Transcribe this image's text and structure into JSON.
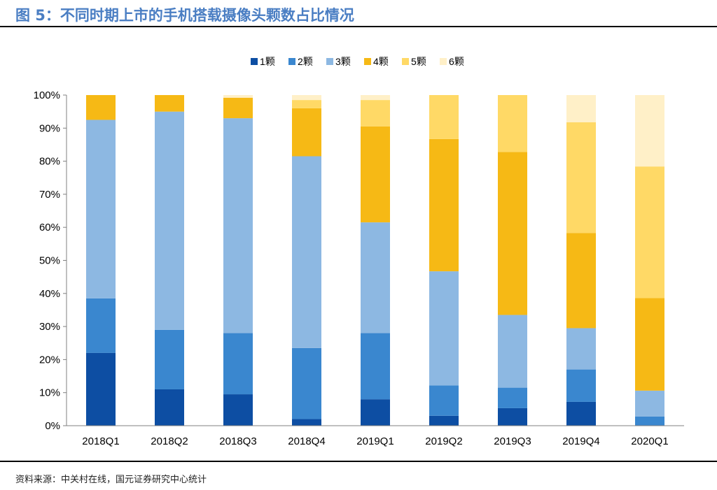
{
  "title": "图 5：不同时期上市的手机搭载摄像头颗数占比情况",
  "source": "资料来源：中关村在线，国元证券研究中心统计",
  "chart_data": {
    "type": "bar",
    "stacked": true,
    "categories": [
      "2018Q1",
      "2018Q2",
      "2018Q3",
      "2018Q4",
      "2019Q1",
      "2019Q2",
      "2019Q3",
      "2019Q4",
      "2020Q1"
    ],
    "y_ticks": [
      "0%",
      "10%",
      "20%",
      "30%",
      "40%",
      "50%",
      "60%",
      "70%",
      "80%",
      "90%",
      "100%"
    ],
    "ylim": [
      0,
      100
    ],
    "legend_position": "top",
    "grid": false,
    "series": [
      {
        "name": "1颗",
        "color": "#0d4ea3",
        "values": [
          22,
          11,
          9.5,
          2,
          8,
          3,
          5.3,
          7.2,
          0
        ]
      },
      {
        "name": "2颗",
        "color": "#3a87cf",
        "values": [
          16.5,
          18,
          18.5,
          21.5,
          20,
          9.2,
          6.2,
          9.8,
          2.8
        ]
      },
      {
        "name": "3颗",
        "color": "#8db8e2",
        "values": [
          54,
          66,
          65,
          58,
          33.5,
          34.5,
          22,
          12.5,
          7.8
        ]
      },
      {
        "name": "4颗",
        "color": "#f6b915",
        "values": [
          7.5,
          5,
          6.2,
          14.5,
          29,
          40,
          49.3,
          28.8,
          28
        ]
      },
      {
        "name": "5颗",
        "color": "#ffd966",
        "values": [
          0,
          0,
          0,
          2.5,
          8,
          13.3,
          17.2,
          33.5,
          39.8
        ]
      },
      {
        "name": "6颗",
        "color": "#fff0c8",
        "values": [
          0,
          0,
          0.8,
          1.5,
          1.5,
          0,
          0,
          8.2,
          21.6
        ]
      }
    ]
  }
}
